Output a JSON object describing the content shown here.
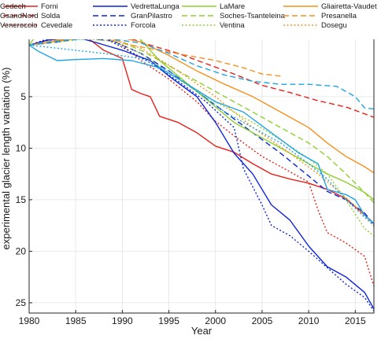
{
  "chart_data": {
    "type": "line",
    "title": "",
    "xlabel": "Year",
    "ylabel": "experimental glacier length variation (%)",
    "xlim": [
      1980,
      2017
    ],
    "ylim": [
      -4,
      26
    ],
    "y_inverted": true,
    "grid": true,
    "legend": "top, 4 columns",
    "x_ticks": [
      "1980",
      "1985",
      "1990",
      "1995",
      "2000",
      "2005",
      "2010",
      "2015"
    ],
    "y_ticks": [
      "5",
      "10",
      "15",
      "20",
      "25"
    ],
    "series": [
      {
        "name": "Forni",
        "color": "#e8211b",
        "dash": "solid",
        "x": [
          1980,
          1982,
          1984,
          1986,
          1988,
          1990,
          1991,
          1992,
          1993,
          1994,
          1996,
          1998,
          2000,
          2002,
          2004,
          2006,
          2008,
          2010,
          2012,
          2014,
          2016,
          2017
        ],
        "y": [
          0,
          -0.5,
          -0.6,
          -0.9,
          0.5,
          1.3,
          4.3,
          4.7,
          5,
          6.9,
          7.5,
          8.5,
          9.8,
          10.4,
          11.5,
          12.5,
          13,
          13.4,
          14,
          14.9,
          16.5,
          17.3
        ]
      },
      {
        "name": "Solda",
        "color": "#e8211b",
        "dash": "dashed",
        "x": [
          1980,
          1983,
          1985,
          1988,
          1990,
          1993,
          1996,
          1999,
          2002,
          2005,
          2008,
          2011,
          2014,
          2017
        ],
        "y": [
          0,
          -0.5,
          -0.8,
          -0.9,
          -0.9,
          0,
          0.8,
          1.8,
          2.8,
          3.9,
          4.6,
          5.4,
          6,
          7
        ]
      },
      {
        "name": "Cevedale",
        "color": "#e8211b",
        "dash": "dotted",
        "x": [
          1980,
          1983,
          1986,
          1988,
          1990,
          1992,
          1995,
          1998,
          2000,
          2003,
          2005,
          2008,
          2010,
          2011,
          2012,
          2014,
          2016,
          2017
        ],
        "y": [
          0,
          -0.7,
          -1,
          -0.8,
          0,
          1.5,
          3.3,
          5.5,
          7.4,
          9.5,
          10.8,
          12.3,
          13.3,
          16,
          18.2,
          19.2,
          20.5,
          23.4
        ]
      },
      {
        "name": "VedrettaLunga",
        "color": "#0d24d9",
        "dash": "solid",
        "x": [
          1980,
          1982,
          1985,
          1987,
          1990,
          1993,
          1995,
          1998,
          2000,
          2002,
          2004,
          2005,
          2006,
          2008,
          2010,
          2012,
          2014,
          2016,
          2017
        ],
        "y": [
          0,
          -0.5,
          -0.8,
          -0.3,
          0.5,
          1.5,
          3,
          5,
          7.5,
          10.5,
          12.5,
          14,
          15.5,
          17,
          19.5,
          21.5,
          22.5,
          24,
          25.6
        ]
      },
      {
        "name": "GranPilastro",
        "color": "#0d24d9",
        "dash": "dashed",
        "x": [
          1980,
          1983,
          1986,
          1989,
          1992,
          1995,
          1998,
          2001,
          2004,
          2007,
          2010,
          2012,
          2014,
          2016,
          2017
        ],
        "y": [
          0,
          -0.3,
          -0.7,
          -0.4,
          0.8,
          2.5,
          4.5,
          6.5,
          8.5,
          10.5,
          12.7,
          14.2,
          15,
          16.3,
          17.4
        ]
      },
      {
        "name": "Forcola",
        "color": "#0d24d9",
        "dash": "dotted",
        "x": [
          1980,
          1982,
          1985,
          1988,
          1990,
          1993,
          1996,
          1999,
          2002,
          2003,
          2005,
          2006,
          2008,
          2010,
          2012,
          2014,
          2016,
          2017
        ],
        "y": [
          0,
          -0.6,
          -1.2,
          -0.7,
          0.2,
          1.7,
          3.5,
          5.5,
          8,
          12,
          15.5,
          17.5,
          18.5,
          20,
          21.6,
          23.2,
          24.5,
          25.8
        ]
      },
      {
        "name": "LaMare",
        "color": "#8ed02f",
        "dash": "solid",
        "x": [
          1980,
          1982,
          1984,
          1985,
          1986,
          1988,
          1990,
          1992,
          1994,
          1996,
          1998,
          2000,
          2002,
          2004,
          2006,
          2008,
          2010,
          2012,
          2014,
          2016,
          2017
        ],
        "y": [
          0,
          -2.5,
          -3.8,
          -4,
          -3.9,
          -3.5,
          -2.5,
          -0.5,
          1.5,
          3,
          4.5,
          6,
          7.5,
          8.5,
          9.5,
          10.5,
          11.5,
          12.5,
          13.3,
          14.3,
          15
        ]
      },
      {
        "name": "Soches-Tsanteleina",
        "color": "#8ed02f",
        "dash": "dashed",
        "x": [
          1980,
          1983,
          1986,
          1989,
          1992,
          1995,
          1998,
          2001,
          2004,
          2007,
          2010,
          2012,
          2014,
          2016,
          2017
        ],
        "y": [
          0,
          -0.5,
          -0.8,
          -0.6,
          0.5,
          2,
          3.5,
          5,
          6.5,
          8,
          9.5,
          10.8,
          12.5,
          14.3,
          15.3
        ]
      },
      {
        "name": "Ventina",
        "color": "#8ed02f",
        "dash": "dotted",
        "x": [
          1980,
          1983,
          1986,
          1989,
          1992,
          1995,
          1998,
          2001,
          2004,
          2007,
          2010,
          2012,
          2014,
          2016,
          2017
        ],
        "y": [
          0,
          -0.3,
          -0.6,
          -0.4,
          0.8,
          2.7,
          4.5,
          6,
          7.5,
          9.2,
          11,
          12.5,
          15,
          17.8,
          18.5
        ]
      },
      {
        "name": "Gliairetta-Vaudet",
        "color": "#f7911e",
        "dash": "solid",
        "x": [
          1980,
          1983,
          1986,
          1989,
          1992,
          1995,
          1998,
          2001,
          2004,
          2007,
          2010,
          2012,
          2014,
          2016,
          2017
        ],
        "y": [
          0,
          -0.4,
          -0.7,
          -0.9,
          -0.3,
          1,
          2.5,
          3.8,
          5,
          6.5,
          8,
          9.5,
          10.8,
          11.8,
          12.4
        ]
      },
      {
        "name": "Presanella",
        "color": "#f7911e",
        "dash": "dashed",
        "x": [
          1980,
          1984,
          1988,
          1991,
          1994,
          1997,
          2000,
          2003,
          2005,
          2007
        ],
        "y": [
          0,
          -0.6,
          -0.8,
          0,
          0.5,
          1,
          1.5,
          2.2,
          2.8,
          3
        ]
      },
      {
        "name": "Dosegu",
        "color": "#f7911e",
        "dash": "dotted",
        "x": [
          1980,
          1984,
          1988,
          1992,
          1996,
          2000,
          2004,
          2008,
          2011,
          2014,
          2016,
          2017
        ],
        "y": [
          0,
          -0.6,
          -0.8,
          0.3,
          2.5,
          5,
          8,
          10.5,
          12.5,
          14.8,
          16.5,
          17.6
        ]
      },
      {
        "name": "Cedech",
        "color": "#1fa4e4",
        "dash": "solid",
        "x": [
          1980,
          1981,
          1983,
          1985,
          1988,
          1991,
          1994,
          1997,
          2000,
          2003,
          2006,
          2009,
          2011,
          2012,
          2014,
          2015,
          2016,
          2017
        ],
        "y": [
          0,
          0.6,
          1.5,
          1.4,
          1.3,
          1.5,
          2.2,
          3.8,
          5.5,
          6.5,
          8.5,
          10.5,
          11.5,
          14,
          14.5,
          15,
          16.5,
          17.3
        ]
      },
      {
        "name": "OsandNord",
        "color": "#1fa4e4",
        "dash": "dashed",
        "x": [
          1980,
          1984,
          1988,
          1992,
          1995,
          1998,
          2001,
          2004,
          2007,
          2010,
          2013,
          2015,
          2016,
          2017
        ],
        "y": [
          0,
          -0.5,
          -0.7,
          -0.2,
          0.8,
          2,
          2.9,
          3.5,
          3.8,
          3.8,
          4,
          5,
          6.1,
          6.2
        ]
      },
      {
        "name": "Venerocolo",
        "color": "#1fa4e4",
        "dash": "dotted",
        "x": [
          1980,
          1983,
          1986,
          1989,
          1992,
          1995,
          1998,
          2001,
          2004,
          2007,
          2010,
          2012,
          2014,
          2016,
          2017
        ],
        "y": [
          0,
          0.3,
          0.6,
          0.9,
          1.3,
          2.5,
          4.5,
          6.5,
          8,
          9.5,
          11.5,
          13,
          15,
          16.7,
          17.5
        ]
      }
    ]
  }
}
